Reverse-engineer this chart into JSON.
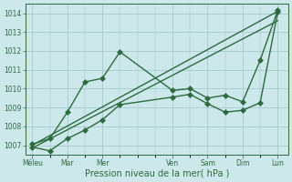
{
  "xlabel": "Pression niveau de la mer( hPa )",
  "xlabels": [
    "Méleu",
    "Mar",
    "Mer",
    "Ven",
    "Sam",
    "Dim",
    "Lun"
  ],
  "x_positions": [
    0,
    1,
    2,
    4,
    5,
    6,
    7
  ],
  "ylim": [
    1006.5,
    1014.5
  ],
  "yticks": [
    1007,
    1008,
    1009,
    1010,
    1011,
    1012,
    1013,
    1014
  ],
  "xlim": [
    -0.2,
    7.3
  ],
  "background_color": "#cce8ea",
  "grid_color": "#9dc4c8",
  "line_color": "#2d6a3f",
  "series": [
    {
      "x": [
        0,
        0.5,
        1.0,
        1.5,
        2.0,
        2.5,
        4.0,
        4.5,
        5.0,
        5.5,
        6.0,
        6.5,
        7.0
      ],
      "y": [
        1007.05,
        1007.35,
        1008.75,
        1010.35,
        1010.55,
        1011.95,
        1009.9,
        1010.0,
        1009.5,
        1009.65,
        1009.3,
        1011.5,
        1014.15
      ],
      "marker": "D",
      "markersize": 3.0,
      "lw": 1.0
    },
    {
      "x": [
        0,
        7.0
      ],
      "y": [
        1007.0,
        1014.1
      ],
      "marker": null,
      "markersize": 0,
      "lw": 1.0
    },
    {
      "x": [
        0,
        7.0
      ],
      "y": [
        1006.85,
        1013.6
      ],
      "marker": null,
      "markersize": 0,
      "lw": 1.0
    },
    {
      "x": [
        0,
        0.5,
        1.0,
        1.5,
        2.0,
        2.5,
        4.0,
        4.5,
        5.0,
        5.5,
        6.0,
        6.5,
        7.0
      ],
      "y": [
        1006.9,
        1006.7,
        1007.35,
        1007.8,
        1008.35,
        1009.15,
        1009.55,
        1009.7,
        1009.2,
        1008.75,
        1008.85,
        1009.25,
        1014.05
      ],
      "marker": "D",
      "markersize": 3.0,
      "lw": 1.0
    }
  ]
}
